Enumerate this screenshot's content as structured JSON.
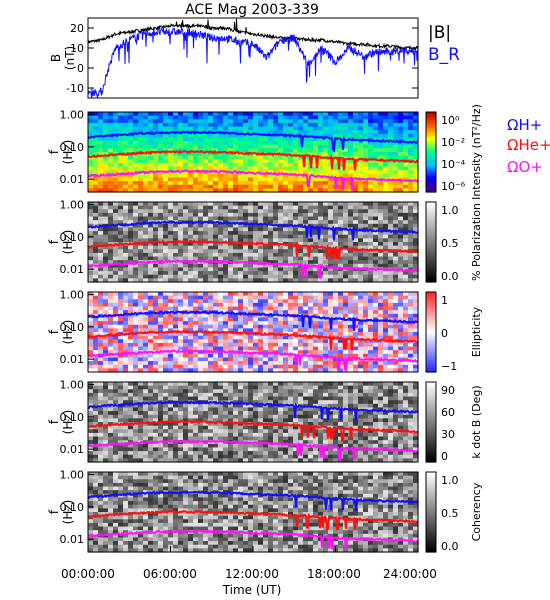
{
  "chart_data": {
    "type": "spectrogram",
    "title": "ACE Mag 2003-339",
    "x_axis": {
      "label": "Time (UT)",
      "tick_labels": [
        "00:00:00",
        "06:00:00",
        "12:00:00",
        "18:00:00",
        "24:00:00"
      ],
      "range_hours": [
        0,
        24
      ]
    },
    "field_panel": {
      "ylabel": "B (nT)",
      "ylim": [
        -15,
        25
      ],
      "ytick_labels": [
        "20",
        "10",
        "0",
        "-10"
      ],
      "series": [
        {
          "name": "|B|",
          "color": "#000000",
          "x": [
            0,
            1,
            2,
            3,
            4,
            5,
            6,
            7,
            8,
            9,
            10,
            11,
            12,
            13,
            14,
            15,
            16,
            17,
            18,
            19,
            20,
            21,
            22,
            23,
            24
          ],
          "y": [
            13,
            14,
            17,
            18,
            19,
            20,
            21,
            21,
            21,
            20,
            20,
            18,
            17,
            16,
            15,
            15,
            14,
            14,
            13,
            12,
            12,
            11,
            11,
            10,
            10
          ]
        },
        {
          "name": "B_R",
          "color": "#1010ff",
          "x": [
            0,
            1,
            1.5,
            2,
            3,
            4,
            5,
            6,
            7,
            8,
            9,
            10,
            11,
            12,
            13,
            14,
            15,
            16,
            17,
            18,
            19,
            20,
            21,
            22,
            23,
            24
          ],
          "y": [
            -12,
            -12,
            0,
            10,
            14,
            17,
            18,
            18,
            18,
            17,
            15,
            15,
            13,
            12,
            5,
            14,
            15,
            2,
            10,
            3,
            10,
            6,
            8,
            8,
            9,
            8
          ]
        }
      ]
    },
    "freq_axis": {
      "label": "f (Hz)",
      "scale": "log",
      "range_hz": [
        0.004,
        1.2
      ],
      "tick_labels": [
        "1.00",
        "0.10",
        "0.01"
      ]
    },
    "gyrofrequency_lines": [
      {
        "name": "ΩH+",
        "color": "#1010ff",
        "x": [
          0,
          2,
          4,
          6,
          8,
          10,
          12,
          14,
          15,
          16,
          17,
          18,
          19,
          20,
          22,
          24
        ],
        "y": [
          0.2,
          0.23,
          0.26,
          0.28,
          0.28,
          0.27,
          0.25,
          0.23,
          0.22,
          0.21,
          0.19,
          0.18,
          0.17,
          0.16,
          0.15,
          0.14
        ]
      },
      {
        "name": "ΩHe+",
        "color": "#ff1010",
        "x": [
          0,
          2,
          4,
          6,
          8,
          10,
          12,
          14,
          15,
          16,
          17,
          18,
          19,
          20,
          22,
          24
        ],
        "y": [
          0.05,
          0.057,
          0.065,
          0.07,
          0.07,
          0.067,
          0.062,
          0.058,
          0.055,
          0.052,
          0.048,
          0.045,
          0.042,
          0.04,
          0.038,
          0.035
        ]
      },
      {
        "name": "ΩO+",
        "color": "#ff10ff",
        "x": [
          0,
          2,
          4,
          6,
          8,
          10,
          12,
          14,
          15,
          16,
          17,
          18,
          19,
          20,
          22,
          24
        ],
        "y": [
          0.0125,
          0.014,
          0.016,
          0.0175,
          0.0175,
          0.017,
          0.0155,
          0.0145,
          0.014,
          0.013,
          0.012,
          0.011,
          0.0105,
          0.01,
          0.0095,
          0.0088
        ]
      }
    ],
    "spectrogram_panels": [
      {
        "colorbar_label": "Intensity (nT²/Hz)",
        "colorbar_tick_labels": [
          "10⁰",
          "10⁻²",
          "10⁻⁴",
          "10⁻⁶"
        ],
        "colormap": "rainbow",
        "colorbar_range": [
          -6.5,
          1
        ]
      },
      {
        "colorbar_label": "% Polarization",
        "colorbar_tick_labels": [
          "1.0",
          "0.5",
          "0.0"
        ],
        "colormap": "gray",
        "colorbar_range": [
          0,
          1
        ]
      },
      {
        "colorbar_label": "Ellipticity",
        "colorbar_tick_labels": [
          "1",
          "0",
          "−1"
        ],
        "colormap": "blue-white-red",
        "colorbar_range": [
          -1,
          1
        ]
      },
      {
        "colorbar_label": "k dot B (Deg)",
        "colorbar_tick_labels": [
          "90",
          "60",
          "30",
          "0"
        ],
        "colormap": "gray",
        "colorbar_range": [
          0,
          90
        ]
      },
      {
        "colorbar_label": "Coherency",
        "colorbar_tick_labels": [
          "1.0",
          "0.5",
          "0.0"
        ],
        "colormap": "gray",
        "colorbar_range": [
          0,
          1
        ]
      }
    ]
  }
}
